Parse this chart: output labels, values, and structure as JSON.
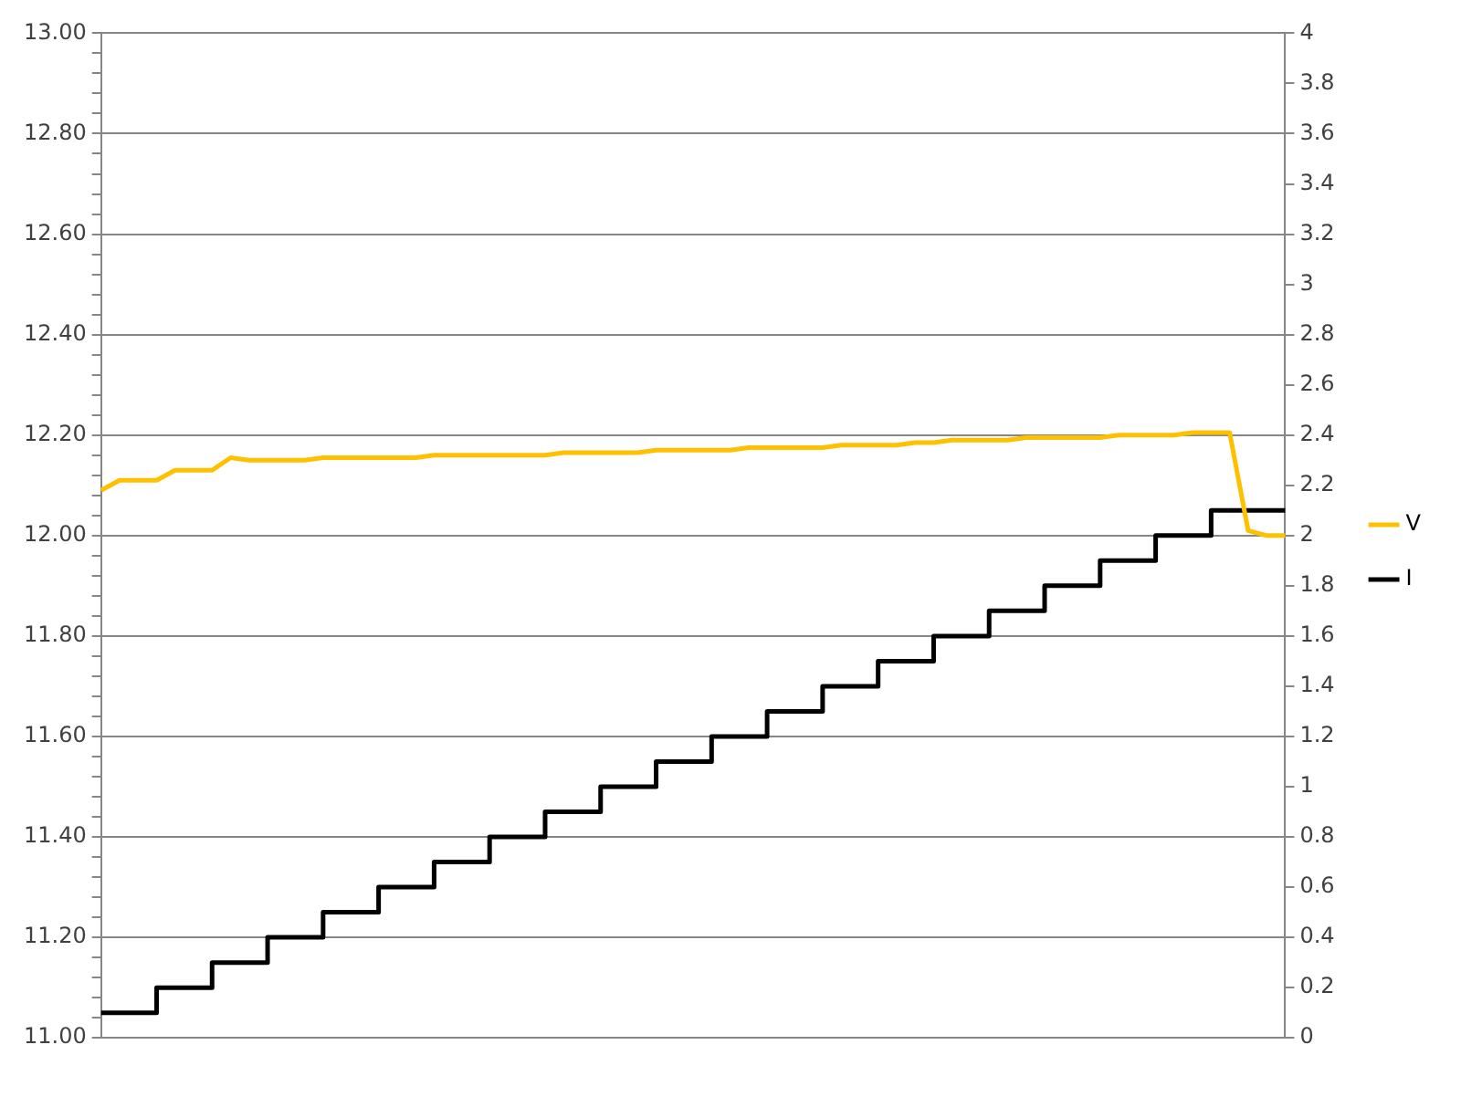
{
  "chart_data": {
    "type": "line",
    "categories": [
      null,
      null,
      null,
      null,
      null,
      null,
      null,
      null,
      null,
      null,
      null,
      null,
      null,
      null,
      null,
      null,
      null,
      null,
      null,
      null,
      null,
      null,
      null,
      null,
      null,
      null,
      null,
      null,
      null,
      null,
      null,
      null,
      null,
      null,
      null,
      null,
      null,
      null,
      null,
      null,
      null,
      null,
      null,
      null,
      null,
      null,
      null,
      null,
      null,
      null,
      null,
      null,
      null,
      null,
      null,
      null,
      null,
      null,
      null,
      null,
      null,
      null,
      null,
      null,
      null
    ],
    "series": [
      {
        "name": "V",
        "color": "#ffc000",
        "values": [
          12.09,
          12.11,
          12.11,
          12.11,
          12.13,
          12.13,
          12.13,
          12.155,
          12.15,
          12.15,
          12.15,
          12.15,
          12.155,
          12.155,
          12.155,
          12.155,
          12.155,
          12.155,
          12.16,
          12.16,
          12.16,
          12.16,
          12.16,
          12.16,
          12.16,
          12.165,
          12.165,
          12.165,
          12.165,
          12.165,
          12.17,
          12.17,
          12.17,
          12.17,
          12.17,
          12.175,
          12.175,
          12.175,
          12.175,
          12.175,
          12.18,
          12.18,
          12.18,
          12.18,
          12.185,
          12.185,
          12.19,
          12.19,
          12.19,
          12.19,
          12.195,
          12.195,
          12.195,
          12.195,
          12.195,
          12.2,
          12.2,
          12.2,
          12.2,
          12.205,
          12.205,
          12.205,
          12.01,
          12.0,
          12.0
        ]
      },
      {
        "name": "I",
        "type": "step",
        "axis": "y2",
        "color": "#000000",
        "values": [
          0.1,
          0.1,
          0.1,
          0.1,
          0.2,
          0.2,
          0.2,
          0.3,
          0.3,
          0.3,
          0.4,
          0.4,
          0.4,
          0.5,
          0.5,
          0.5,
          0.6,
          0.6,
          0.6,
          0.7,
          0.7,
          0.7,
          0.8,
          0.8,
          0.8,
          0.9,
          0.9,
          0.9,
          1.0,
          1.0,
          1.0,
          1.1,
          1.1,
          1.1,
          1.2,
          1.2,
          1.2,
          1.3,
          1.3,
          1.3,
          1.4,
          1.4,
          1.4,
          1.5,
          1.5,
          1.5,
          1.6,
          1.6,
          1.6,
          1.7,
          1.7,
          1.7,
          1.8,
          1.8,
          1.8,
          1.9,
          1.9,
          1.9,
          2.0,
          2.0,
          2.0,
          2.1,
          2.1,
          2.1,
          2.1
        ]
      }
    ],
    "ylim": [
      11,
      13
    ],
    "yticks": [
      {
        "value": 11,
        "label": "11.00"
      },
      {
        "value": 11.04,
        "label": null
      },
      {
        "value": 11.08,
        "label": null
      },
      {
        "value": 11.12,
        "label": null
      },
      {
        "value": 11.16,
        "label": null
      },
      {
        "value": 11.2,
        "label": "11.20"
      },
      {
        "value": 11.24,
        "label": null
      },
      {
        "value": 11.28,
        "label": null
      },
      {
        "value": 11.32,
        "label": null
      },
      {
        "value": 11.36,
        "label": null
      },
      {
        "value": 11.4,
        "label": "11.40"
      },
      {
        "value": 11.44,
        "label": null
      },
      {
        "value": 11.48,
        "label": null
      },
      {
        "value": 11.52,
        "label": null
      },
      {
        "value": 11.56,
        "label": null
      },
      {
        "value": 11.6,
        "label": "11.60"
      },
      {
        "value": 11.64,
        "label": null
      },
      {
        "value": 11.68,
        "label": null
      },
      {
        "value": 11.72,
        "label": null
      },
      {
        "value": 11.76,
        "label": null
      },
      {
        "value": 11.8,
        "label": "11.80"
      },
      {
        "value": 11.84,
        "label": null
      },
      {
        "value": 11.88,
        "label": null
      },
      {
        "value": 11.92,
        "label": null
      },
      {
        "value": 11.96,
        "label": null
      },
      {
        "value": 12,
        "label": "12.00"
      },
      {
        "value": 12.04,
        "label": null
      },
      {
        "value": 12.08,
        "label": null
      },
      {
        "value": 12.12,
        "label": null
      },
      {
        "value": 12.16,
        "label": null
      },
      {
        "value": 12.2,
        "label": "12.20"
      },
      {
        "value": 12.24,
        "label": null
      },
      {
        "value": 12.28,
        "label": null
      },
      {
        "value": 12.32,
        "label": null
      },
      {
        "value": 12.36,
        "label": null
      },
      {
        "value": 12.4,
        "label": "12.40"
      },
      {
        "value": 12.44,
        "label": null
      },
      {
        "value": 12.48,
        "label": null
      },
      {
        "value": 12.52,
        "label": null
      },
      {
        "value": 12.56,
        "label": null
      },
      {
        "value": 12.6,
        "label": "12.60"
      },
      {
        "value": 12.64,
        "label": null
      },
      {
        "value": 12.68,
        "label": null
      },
      {
        "value": 12.72,
        "label": null
      },
      {
        "value": 12.76,
        "label": null
      },
      {
        "value": 12.8,
        "label": "12.80"
      },
      {
        "value": 12.84,
        "label": null
      },
      {
        "value": 12.88,
        "label": null
      },
      {
        "value": 12.92,
        "label": null
      },
      {
        "value": 12.96,
        "label": null
      },
      {
        "value": 13,
        "label": "13.00"
      }
    ],
    "y2lim": [
      0,
      4
    ],
    "y2ticks": [
      0,
      0.2,
      0.4,
      0.6,
      0.8,
      1,
      1.2,
      1.4,
      1.6,
      1.8,
      2,
      2.2,
      2.4,
      2.6,
      2.8,
      3,
      3.2,
      3.4,
      3.6,
      3.8,
      4
    ],
    "grid": "y",
    "legend": "right",
    "marker": "none",
    "line_style": "solid"
  }
}
